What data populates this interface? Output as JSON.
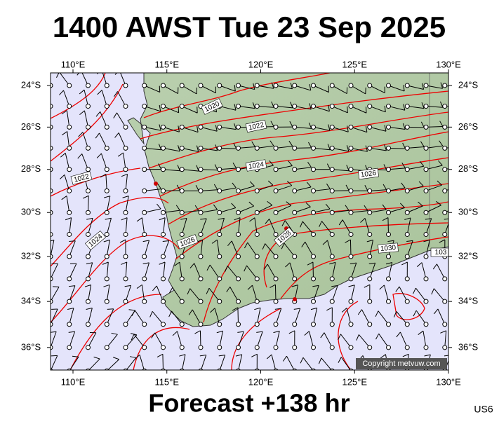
{
  "header": {
    "title": "1400 AWST Tue 23 Sep 2025"
  },
  "footer": {
    "forecast": "Forecast +138 hr",
    "code": "US6",
    "copyright": "Copyright metvuw.com"
  },
  "axes": {
    "lon_labels": [
      {
        "value": 110,
        "label": "110°E"
      },
      {
        "value": 115,
        "label": "115°E"
      },
      {
        "value": 120,
        "label": "120°E"
      },
      {
        "value": 125,
        "label": "125°E"
      },
      {
        "value": 130,
        "label": "130°E"
      }
    ],
    "lat_labels": [
      {
        "value": 24,
        "label": "24°S"
      },
      {
        "value": 26,
        "label": "26°S"
      },
      {
        "value": 28,
        "label": "28°S"
      },
      {
        "value": 30,
        "label": "30°S"
      },
      {
        "value": 32,
        "label": "32°S"
      },
      {
        "value": 34,
        "label": "34°S"
      },
      {
        "value": 36,
        "label": "36°S"
      }
    ]
  },
  "contour_labels": [
    1020,
    1022,
    1024,
    1026,
    1022,
    1024,
    1026,
    1028,
    1030,
    103
  ]
}
